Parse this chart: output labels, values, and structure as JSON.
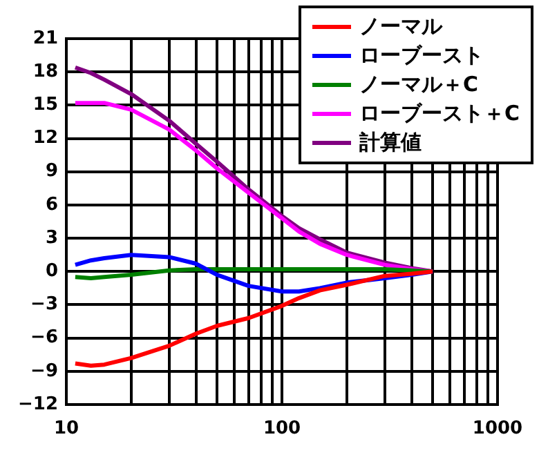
{
  "chart_data": {
    "type": "line",
    "log": "x",
    "grid": true,
    "legend": "top right",
    "marker": "none",
    "line_style": "solid",
    "xlim": [
      10,
      1000
    ],
    "ylim": [
      -12,
      21
    ],
    "xticks": [
      10,
      {
        "value": 20,
        "label": null
      },
      {
        "value": 30,
        "label": null
      },
      {
        "value": 40,
        "label": null
      },
      {
        "value": 50,
        "label": null
      },
      {
        "value": 60,
        "label": null
      },
      {
        "value": 70,
        "label": null
      },
      {
        "value": 80,
        "label": null
      },
      {
        "value": 90,
        "label": null
      },
      100,
      {
        "value": 200,
        "label": null
      },
      {
        "value": 300,
        "label": null
      },
      {
        "value": 400,
        "label": null
      },
      {
        "value": 500,
        "label": null
      },
      {
        "value": 600,
        "label": null
      },
      {
        "value": 700,
        "label": null
      },
      {
        "value": 800,
        "label": null
      },
      {
        "value": 900,
        "label": null
      },
      1000
    ],
    "yticks": [
      -12,
      -9,
      -6,
      -3,
      0,
      3,
      6,
      9,
      12,
      15,
      18,
      21
    ],
    "x": [
      11,
      13,
      15,
      20,
      30,
      40,
      50,
      70,
      100,
      120,
      150,
      200,
      300,
      400,
      500
    ],
    "series": [
      {
        "name": "ノーマル",
        "color": "#ff0000",
        "values": [
          -8.3,
          -8.5,
          -8.4,
          -7.8,
          -6.7,
          -5.6,
          -4.9,
          -4.2,
          -3.1,
          -2.4,
          -1.7,
          -1.2,
          -0.4,
          -0.2,
          0
        ]
      },
      {
        "name": "ローブースト",
        "color": "#0000ff",
        "values": [
          0.6,
          1.0,
          1.2,
          1.5,
          1.3,
          0.7,
          -0.3,
          -1.3,
          -1.8,
          -1.8,
          -1.5,
          -1.0,
          -0.6,
          -0.3,
          0
        ]
      },
      {
        "name": "ノーマル＋C",
        "color": "#008000",
        "values": [
          -0.5,
          -0.6,
          -0.5,
          -0.3,
          0.1,
          0.2,
          0.2,
          0.2,
          0.2,
          0.2,
          0.2,
          0.2,
          0.2,
          0.1,
          0
        ]
      },
      {
        "name": "ローブースト＋C",
        "color": "#ff00ff",
        "values": [
          15.2,
          15.2,
          15.2,
          14.6,
          12.8,
          10.9,
          9.3,
          7.1,
          4.8,
          3.6,
          2.5,
          1.5,
          0.6,
          0.2,
          0
        ]
      },
      {
        "name": "計算値",
        "color": "#800080",
        "values": [
          18.4,
          17.9,
          17.3,
          16.0,
          13.6,
          11.5,
          9.9,
          7.4,
          5.0,
          3.9,
          2.9,
          1.7,
          0.8,
          0.3,
          0
        ]
      }
    ]
  }
}
